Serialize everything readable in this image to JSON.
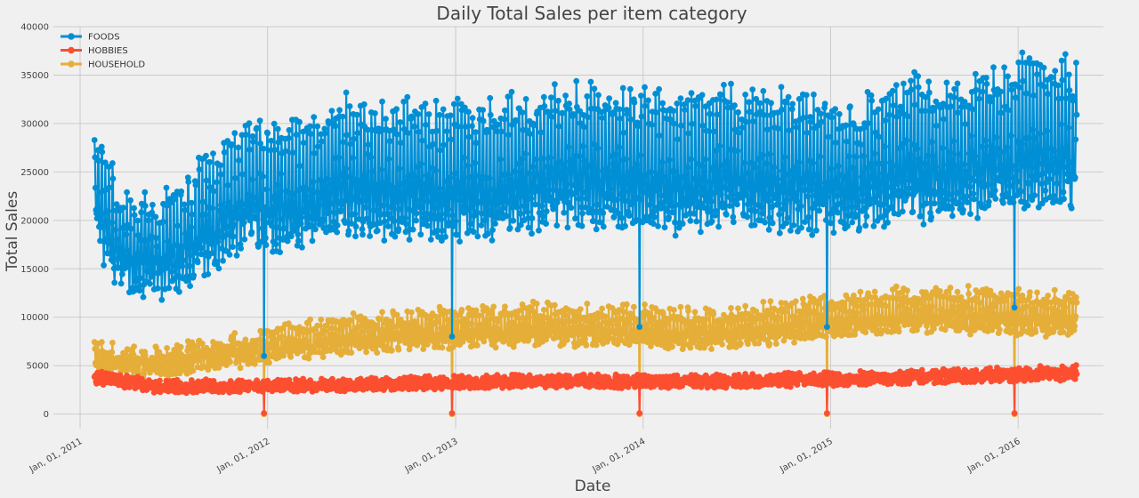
{
  "chart_data": {
    "type": "line",
    "title": "Daily Total Sales per item category",
    "xlabel": "Date",
    "ylabel": "Total Sales",
    "x_range": [
      "2011-01-29",
      "2016-04-24"
    ],
    "xlim": [
      "2010-11-10",
      "2016-06-15"
    ],
    "ylim": [
      -1500,
      40000
    ],
    "yticks": [
      0,
      5000,
      10000,
      15000,
      20000,
      25000,
      30000,
      35000,
      40000
    ],
    "xticks": [
      {
        "date": "2011-01-01",
        "label": "Jan, 01, 2011"
      },
      {
        "date": "2012-01-01",
        "label": "Jan, 01, 2012"
      },
      {
        "date": "2013-01-01",
        "label": "Jan, 01, 2013"
      },
      {
        "date": "2014-01-01",
        "label": "Jan, 01, 2014"
      },
      {
        "date": "2015-01-01",
        "label": "Jan, 01, 2015"
      },
      {
        "date": "2016-01-01",
        "label": "Jan, 01, 2016"
      }
    ],
    "grid": true,
    "legend_position": "top-left",
    "series": [
      {
        "name": "FOODS",
        "color": "#008fd5",
        "values": [
          {
            "date": "2011-01-29",
            "value": 23200
          },
          {
            "date": "2011-03-15",
            "value": 17500
          },
          {
            "date": "2011-06-01",
            "value": 16000
          },
          {
            "date": "2011-09-01",
            "value": 19500
          },
          {
            "date": "2011-12-01",
            "value": 22500
          },
          {
            "date": "2011-12-25",
            "value": 6000
          },
          {
            "date": "2012-03-01",
            "value": 22500
          },
          {
            "date": "2012-06-01",
            "value": 24500
          },
          {
            "date": "2012-09-01",
            "value": 24000
          },
          {
            "date": "2012-12-25",
            "value": 8000
          },
          {
            "date": "2013-03-01",
            "value": 24000
          },
          {
            "date": "2013-06-01",
            "value": 25000
          },
          {
            "date": "2013-09-01",
            "value": 25500
          },
          {
            "date": "2013-12-25",
            "value": 9000
          },
          {
            "date": "2014-03-01",
            "value": 24500
          },
          {
            "date": "2014-06-01",
            "value": 25500
          },
          {
            "date": "2014-09-01",
            "value": 25000
          },
          {
            "date": "2014-12-25",
            "value": 9000
          },
          {
            "date": "2015-03-01",
            "value": 24500
          },
          {
            "date": "2015-06-01",
            "value": 26000
          },
          {
            "date": "2015-09-01",
            "value": 26000
          },
          {
            "date": "2015-12-25",
            "value": 11000
          },
          {
            "date": "2016-03-01",
            "value": 28500
          },
          {
            "date": "2016-04-24",
            "value": 26800
          }
        ]
      },
      {
        "name": "HOBBIES",
        "color": "#fc4f30",
        "values": [
          {
            "date": "2011-01-29",
            "value": 3800
          },
          {
            "date": "2011-06-01",
            "value": 2800
          },
          {
            "date": "2011-12-25",
            "value": 100
          },
          {
            "date": "2012-06-01",
            "value": 3000
          },
          {
            "date": "2012-12-25",
            "value": 100
          },
          {
            "date": "2013-06-01",
            "value": 3400
          },
          {
            "date": "2013-12-25",
            "value": 100
          },
          {
            "date": "2014-06-01",
            "value": 3300
          },
          {
            "date": "2014-12-25",
            "value": 100
          },
          {
            "date": "2015-06-01",
            "value": 3800
          },
          {
            "date": "2015-12-25",
            "value": 100
          },
          {
            "date": "2016-04-24",
            "value": 4200
          }
        ]
      },
      {
        "name": "HOUSEHOLD",
        "color": "#e5ae38",
        "values": [
          {
            "date": "2011-01-29",
            "value": 5500
          },
          {
            "date": "2011-06-01",
            "value": 5200
          },
          {
            "date": "2011-12-25",
            "value": 0
          },
          {
            "date": "2012-06-01",
            "value": 8000
          },
          {
            "date": "2012-12-25",
            "value": 0
          },
          {
            "date": "2013-06-01",
            "value": 9000
          },
          {
            "date": "2013-12-25",
            "value": 0
          },
          {
            "date": "2014-06-01",
            "value": 8500
          },
          {
            "date": "2014-12-25",
            "value": 0
          },
          {
            "date": "2015-06-01",
            "value": 10500
          },
          {
            "date": "2015-12-25",
            "value": 0
          },
          {
            "date": "2016-04-24",
            "value": 10000
          }
        ]
      }
    ]
  }
}
